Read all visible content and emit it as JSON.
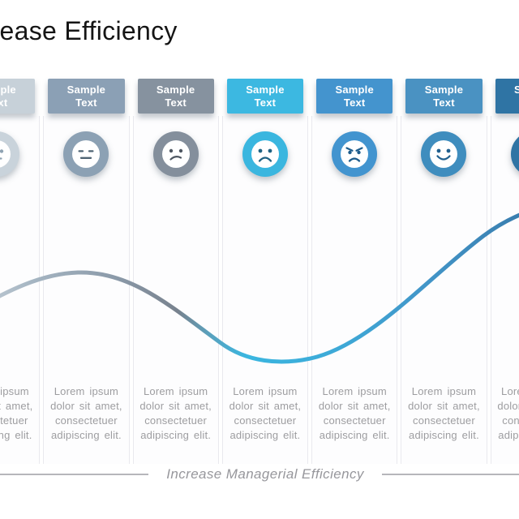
{
  "slide": {
    "title": "Increase Efficiency",
    "footer_caption": "Increase Managerial Efficiency"
  },
  "columns": [
    {
      "header": "Sample Text",
      "body": "Lorem ipsum dolor sit amet, consectetuer adipiscing elit.",
      "mood": "neutral",
      "accent": "#c7d1d9",
      "ring": "#c9d3db",
      "face_color": "#8ea2b2"
    },
    {
      "header": "Sample Text",
      "body": "Lorem ipsum dolor sit amet, consectetuer adipiscing elit.",
      "mood": "expressionless",
      "accent": "#8ba0b5",
      "ring": "#8ca1b4",
      "face_color": "#4e6373"
    },
    {
      "header": "Sample Text",
      "body": "Lorem ipsum dolor sit amet, consectetuer adipiscing elit.",
      "mood": "confused",
      "accent": "#86929f",
      "ring": "#848f9c",
      "face_color": "#4d5661"
    },
    {
      "header": "Sample Text",
      "body": "Lorem ipsum dolor sit amet, consectetuer adipiscing elit.",
      "mood": "sad",
      "accent": "#3cb8e1",
      "ring": "#3ab6df",
      "face_color": "#1e6283"
    },
    {
      "header": "Sample Text",
      "body": "Lorem ipsum dolor sit amet, consectetuer adipiscing elit.",
      "mood": "angry",
      "accent": "#4494ce",
      "ring": "#4294cf",
      "face_color": "#1d5c8c"
    },
    {
      "header": "Sample Text",
      "body": "Lorem ipsum dolor sit amet, consectetuer adipiscing elit.",
      "mood": "happy",
      "accent": "#4a92c2",
      "ring": "#3f8dbe",
      "face_color": "#20608f"
    },
    {
      "header": "Sample Text",
      "body": "Lorem ipsum dolor sit amet, consectetuer adipiscing elit.",
      "mood": "happy",
      "accent": "#2f74a4",
      "ring": "#2f74a4",
      "face_color": "#16557e"
    }
  ],
  "curve": {
    "trend": "dips in the middle then rises to the right",
    "gradient": [
      {
        "offset": 0,
        "color": "#ccd5dd"
      },
      {
        "offset": 0.13,
        "color": "#a5b5c2"
      },
      {
        "offset": 0.26,
        "color": "#8b9aa9"
      },
      {
        "offset": 0.36,
        "color": "#78828e"
      },
      {
        "offset": 0.41,
        "color": "#5aa1bd"
      },
      {
        "offset": 0.47,
        "color": "#3ab6e0"
      },
      {
        "offset": 0.62,
        "color": "#3ea9d7"
      },
      {
        "offset": 0.76,
        "color": "#4295c8"
      },
      {
        "offset": 0.9,
        "color": "#3a7fb0"
      },
      {
        "offset": 1,
        "color": "#2d6f9e"
      }
    ]
  }
}
